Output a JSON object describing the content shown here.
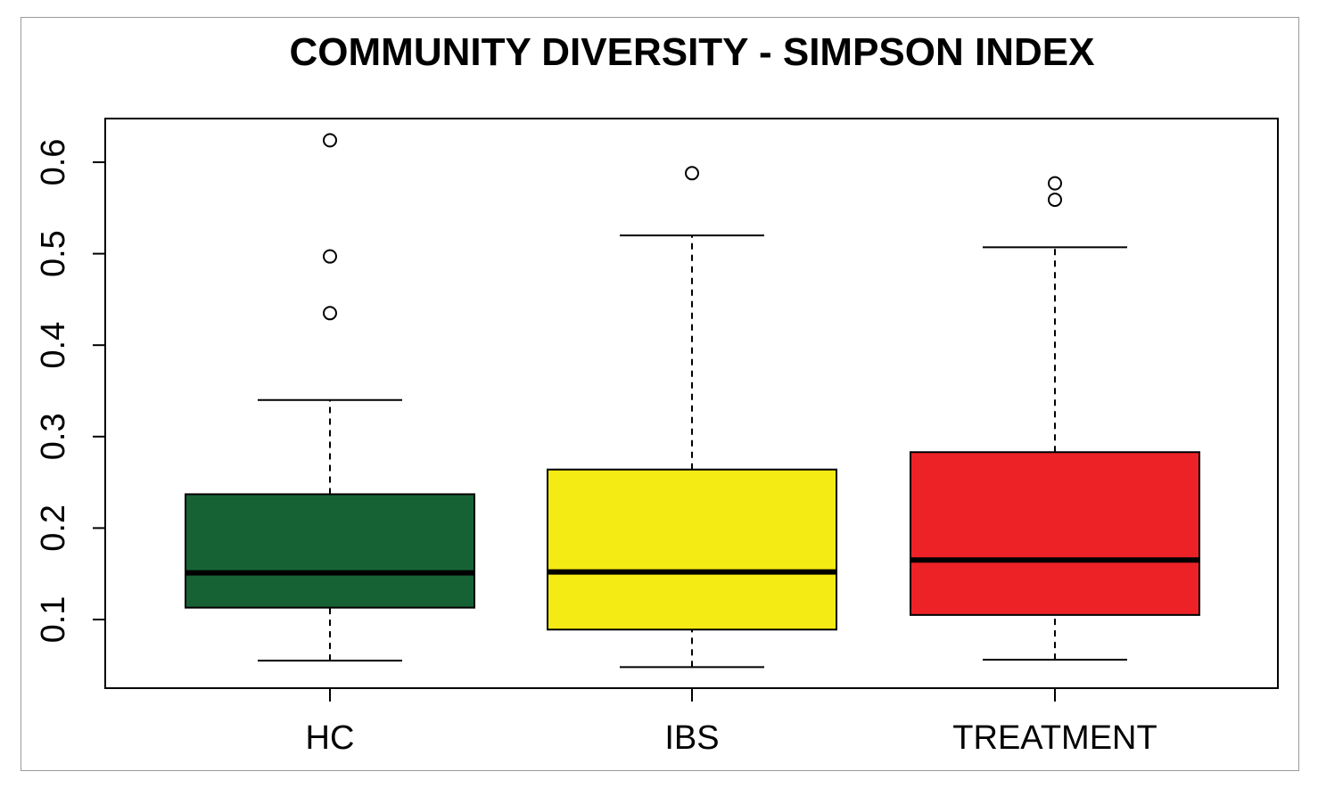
{
  "chart_data": {
    "type": "box",
    "title": "COMMUNITY DIVERSITY - SIMPSON INDEX",
    "xlabel": "",
    "ylabel": "",
    "ylim": [
      0.025,
      0.65
    ],
    "yticks": [
      "0.1",
      "0.2",
      "0.3",
      "0.4",
      "0.5",
      "0.6"
    ],
    "grid": false,
    "categories": [
      "HC",
      "IBS",
      "TREATMENT"
    ],
    "boxes": [
      {
        "category": "HC",
        "whisker_low": 0.055,
        "q1": 0.113,
        "median": 0.151,
        "q3": 0.237,
        "whisker_high": 0.34,
        "outliers": [
          0.435,
          0.497,
          0.624
        ],
        "color": "#176235"
      },
      {
        "category": "IBS",
        "whisker_low": 0.048,
        "q1": 0.089,
        "median": 0.152,
        "q3": 0.264,
        "whisker_high": 0.52,
        "outliers": [
          0.588
        ],
        "color": "#f4ea14"
      },
      {
        "category": "TREATMENT",
        "whisker_low": 0.056,
        "q1": 0.105,
        "median": 0.165,
        "q3": 0.283,
        "whisker_high": 0.507,
        "outliers": [
          0.559,
          0.577
        ],
        "color": "#ec2227"
      }
    ]
  }
}
